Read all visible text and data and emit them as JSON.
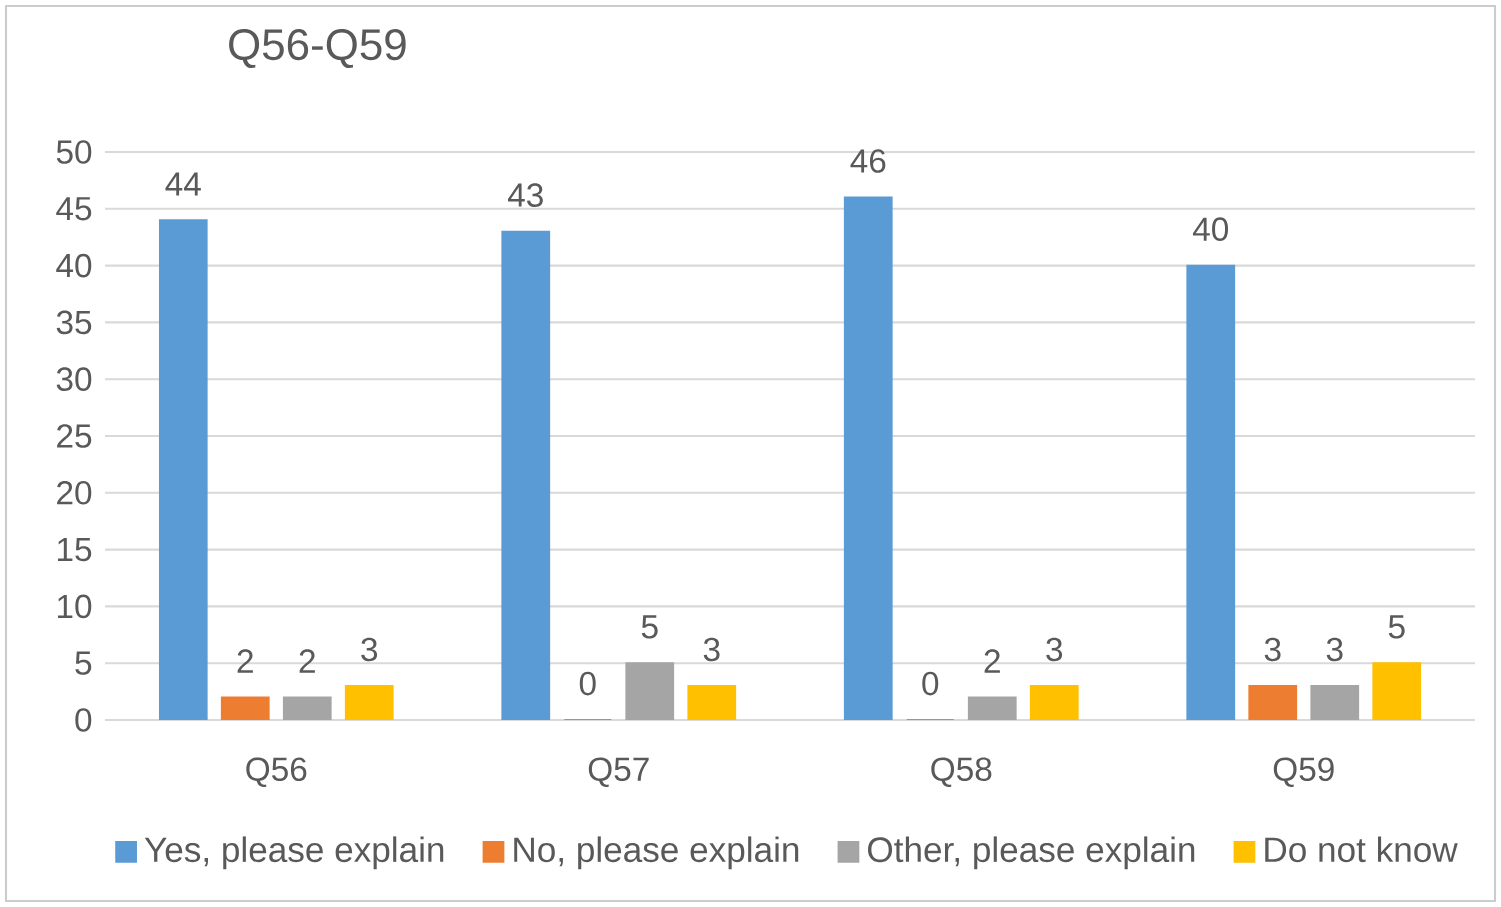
{
  "chart_data": {
    "type": "bar",
    "title": "Q56-Q59",
    "categories": [
      "Q56",
      "Q57",
      "Q58",
      "Q59"
    ],
    "series": [
      {
        "name": "Yes, please explain",
        "color": "#5b9bd5",
        "values": [
          44,
          43,
          46,
          40
        ]
      },
      {
        "name": "No, please explain",
        "color": "#ed7d31",
        "values": [
          2,
          0,
          0,
          3
        ]
      },
      {
        "name": "Other, please explain",
        "color": "#a5a5a5",
        "values": [
          2,
          5,
          2,
          3
        ]
      },
      {
        "name": "Do not know",
        "color": "#ffc000",
        "values": [
          3,
          3,
          3,
          5
        ]
      }
    ],
    "ylim": [
      0,
      50
    ],
    "yticks": [
      0,
      5,
      10,
      15,
      20,
      25,
      30,
      35,
      40,
      45,
      50
    ],
    "grid": "y",
    "legend": "bottom",
    "data_labels": true
  }
}
